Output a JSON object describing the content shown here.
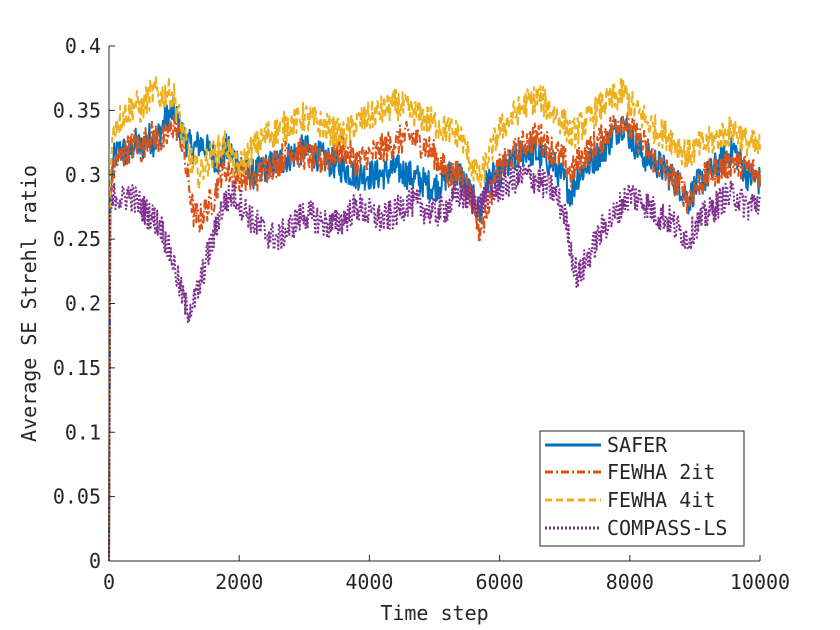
{
  "chart_data": {
    "type": "line",
    "title": "",
    "xlabel": "Time step",
    "ylabel": "Average SE Strehl ratio",
    "xlim": [
      0,
      10000
    ],
    "ylim": [
      0,
      0.4
    ],
    "xticks": [
      0,
      2000,
      4000,
      6000,
      8000,
      10000
    ],
    "xtick_labels": [
      "0",
      "2000",
      "4000",
      "6000",
      "8000",
      "10000"
    ],
    "yticks": [
      0,
      0.05,
      0.1,
      0.15,
      0.2,
      0.25,
      0.3,
      0.35,
      0.4
    ],
    "ytick_labels": [
      "0",
      "0.05",
      "0.1",
      "0.15",
      "0.2",
      "0.25",
      "0.3",
      "0.35",
      "0.4"
    ],
    "grid": false,
    "legend_position": "bottom-right",
    "noise_amplitude": 0.012,
    "series": [
      {
        "name": "SAFER",
        "color": "#0072BD",
        "dash": "solid",
        "x": [
          0,
          20,
          60,
          100,
          200,
          300,
          400,
          500,
          600,
          700,
          800,
          900,
          1000,
          1100,
          1200,
          1300,
          1400,
          1500,
          1600,
          1700,
          1800,
          1900,
          2000,
          2200,
          2400,
          2600,
          2800,
          3000,
          3200,
          3400,
          3600,
          3800,
          4000,
          4200,
          4400,
          4600,
          4800,
          5000,
          5200,
          5400,
          5600,
          5700,
          5800,
          6000,
          6200,
          6400,
          6600,
          6800,
          7000,
          7100,
          7200,
          7400,
          7600,
          7800,
          7900,
          8000,
          8200,
          8400,
          8600,
          8800,
          8900,
          9000,
          9200,
          9400,
          9600,
          9800,
          10000
        ],
        "y": [
          0.0,
          0.28,
          0.31,
          0.315,
          0.32,
          0.315,
          0.325,
          0.32,
          0.33,
          0.325,
          0.335,
          0.345,
          0.35,
          0.335,
          0.325,
          0.32,
          0.325,
          0.32,
          0.315,
          0.31,
          0.32,
          0.315,
          0.31,
          0.3,
          0.305,
          0.31,
          0.315,
          0.32,
          0.315,
          0.31,
          0.305,
          0.3,
          0.3,
          0.3,
          0.305,
          0.3,
          0.295,
          0.29,
          0.3,
          0.3,
          0.28,
          0.27,
          0.295,
          0.3,
          0.31,
          0.32,
          0.315,
          0.31,
          0.295,
          0.285,
          0.3,
          0.31,
          0.32,
          0.335,
          0.34,
          0.33,
          0.315,
          0.31,
          0.3,
          0.29,
          0.28,
          0.29,
          0.3,
          0.31,
          0.32,
          0.3,
          0.295
        ]
      },
      {
        "name": "FEWHA 2it",
        "color": "#D95319",
        "dash": "dashdot",
        "x": [
          0,
          20,
          60,
          100,
          200,
          300,
          400,
          500,
          600,
          700,
          800,
          900,
          1000,
          1100,
          1200,
          1300,
          1400,
          1500,
          1600,
          1700,
          1800,
          1900,
          2000,
          2200,
          2400,
          2600,
          2800,
          3000,
          3200,
          3400,
          3600,
          3800,
          4000,
          4200,
          4400,
          4600,
          4800,
          5000,
          5200,
          5400,
          5600,
          5700,
          5800,
          6000,
          6200,
          6400,
          6600,
          6800,
          7000,
          7100,
          7200,
          7400,
          7600,
          7800,
          7900,
          8000,
          8200,
          8400,
          8600,
          8800,
          8900,
          9000,
          9200,
          9400,
          9600,
          9800,
          10000
        ],
        "y": [
          0.0,
          0.28,
          0.3,
          0.31,
          0.315,
          0.32,
          0.325,
          0.32,
          0.33,
          0.33,
          0.325,
          0.33,
          0.34,
          0.33,
          0.3,
          0.27,
          0.265,
          0.275,
          0.28,
          0.3,
          0.305,
          0.3,
          0.3,
          0.295,
          0.305,
          0.31,
          0.32,
          0.315,
          0.31,
          0.315,
          0.32,
          0.31,
          0.315,
          0.32,
          0.325,
          0.33,
          0.325,
          0.315,
          0.3,
          0.3,
          0.28,
          0.255,
          0.275,
          0.305,
          0.315,
          0.325,
          0.33,
          0.32,
          0.31,
          0.3,
          0.31,
          0.32,
          0.33,
          0.34,
          0.345,
          0.335,
          0.325,
          0.31,
          0.3,
          0.29,
          0.28,
          0.29,
          0.3,
          0.305,
          0.31,
          0.305,
          0.3
        ]
      },
      {
        "name": "FEWHA 4it",
        "color": "#EDB120",
        "dash": "dashed",
        "x": [
          0,
          20,
          60,
          100,
          200,
          300,
          400,
          500,
          600,
          700,
          800,
          900,
          1000,
          1100,
          1200,
          1300,
          1400,
          1500,
          1600,
          1700,
          1800,
          1900,
          2000,
          2200,
          2400,
          2600,
          2800,
          3000,
          3200,
          3400,
          3600,
          3800,
          4000,
          4200,
          4400,
          4600,
          4800,
          5000,
          5200,
          5400,
          5600,
          5700,
          5800,
          6000,
          6200,
          6400,
          6600,
          6800,
          7000,
          7100,
          7200,
          7400,
          7600,
          7800,
          7900,
          8000,
          8200,
          8400,
          8600,
          8800,
          8900,
          9000,
          9200,
          9400,
          9600,
          9800,
          10000
        ],
        "y": [
          0.0,
          0.3,
          0.33,
          0.34,
          0.345,
          0.35,
          0.355,
          0.35,
          0.36,
          0.365,
          0.36,
          0.365,
          0.36,
          0.34,
          0.32,
          0.305,
          0.3,
          0.31,
          0.315,
          0.32,
          0.325,
          0.31,
          0.305,
          0.32,
          0.33,
          0.335,
          0.34,
          0.345,
          0.34,
          0.335,
          0.33,
          0.34,
          0.345,
          0.35,
          0.355,
          0.35,
          0.345,
          0.34,
          0.335,
          0.33,
          0.305,
          0.295,
          0.31,
          0.335,
          0.345,
          0.355,
          0.36,
          0.35,
          0.34,
          0.33,
          0.335,
          0.345,
          0.355,
          0.36,
          0.365,
          0.355,
          0.345,
          0.335,
          0.33,
          0.32,
          0.315,
          0.32,
          0.325,
          0.33,
          0.335,
          0.325,
          0.32
        ]
      },
      {
        "name": "COMPASS-LS",
        "color": "#7E2F8E",
        "dash": "dotted",
        "x": [
          0,
          20,
          60,
          100,
          200,
          300,
          400,
          500,
          600,
          700,
          800,
          900,
          1000,
          1100,
          1200,
          1300,
          1400,
          1500,
          1600,
          1700,
          1800,
          1900,
          2000,
          2200,
          2400,
          2600,
          2800,
          3000,
          3200,
          3400,
          3600,
          3800,
          4000,
          4200,
          4400,
          4600,
          4800,
          5000,
          5200,
          5400,
          5600,
          5700,
          5800,
          6000,
          6200,
          6400,
          6600,
          6800,
          7000,
          7100,
          7200,
          7400,
          7600,
          7800,
          7900,
          8000,
          8200,
          8400,
          8600,
          8800,
          8900,
          9000,
          9200,
          9400,
          9600,
          9800,
          10000
        ],
        "y": [
          0.0,
          0.27,
          0.28,
          0.285,
          0.28,
          0.285,
          0.28,
          0.275,
          0.27,
          0.265,
          0.26,
          0.245,
          0.23,
          0.21,
          0.195,
          0.2,
          0.215,
          0.235,
          0.25,
          0.27,
          0.28,
          0.285,
          0.28,
          0.265,
          0.255,
          0.25,
          0.26,
          0.27,
          0.265,
          0.26,
          0.265,
          0.275,
          0.27,
          0.265,
          0.27,
          0.28,
          0.275,
          0.27,
          0.275,
          0.285,
          0.28,
          0.275,
          0.285,
          0.29,
          0.295,
          0.3,
          0.295,
          0.29,
          0.27,
          0.24,
          0.22,
          0.24,
          0.26,
          0.27,
          0.28,
          0.285,
          0.28,
          0.27,
          0.265,
          0.255,
          0.25,
          0.26,
          0.27,
          0.28,
          0.285,
          0.275,
          0.28
        ]
      }
    ]
  }
}
